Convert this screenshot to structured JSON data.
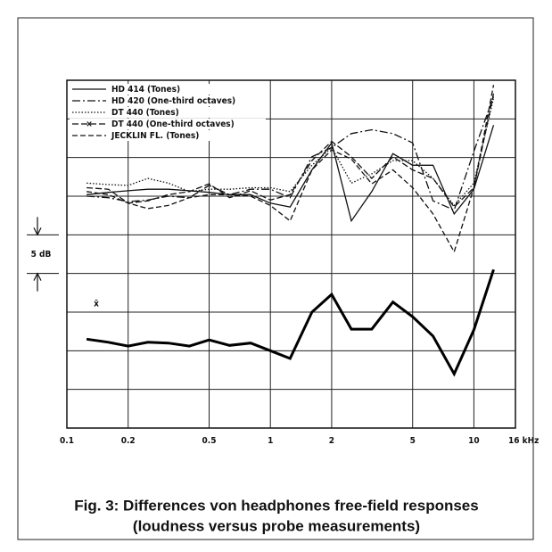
{
  "chart_data": {
    "type": "line",
    "caption": [
      "Fig. 3: Differences von headphones free-field responses",
      "(loudness versus probe measurements)"
    ],
    "annotation": "5 dB",
    "xlog": true,
    "xlim": [
      0.1,
      16
    ],
    "xticks": [
      0.1,
      0.2,
      0.5,
      1,
      2,
      5,
      10,
      {
        "value": 16,
        "label": "16 kHz"
      }
    ],
    "ylim": [
      0,
      45
    ],
    "yticks": [
      0,
      5,
      10,
      15,
      20,
      25,
      30,
      35,
      40,
      45
    ],
    "ytick_labels": false,
    "grid": true,
    "legend": "upper left",
    "x": [
      0.125,
      0.16,
      0.2,
      0.25,
      0.315,
      0.4,
      0.5,
      0.63,
      0.8,
      1,
      1.25,
      1.6,
      2,
      2.5,
      3.15,
      4,
      5,
      6.3,
      8,
      10,
      12.5
    ],
    "series": [
      {
        "name": "HD 414 (Tones)",
        "color": "#111",
        "dash": "solid",
        "values": [
          30.2,
          30.5,
          30.7,
          30.9,
          30.9,
          30.7,
          30.5,
          30.2,
          30.2,
          29.1,
          28.6,
          33.4,
          36.9,
          26.8,
          30.6,
          35.5,
          34.0,
          34.0,
          27.7,
          30.9,
          39.2
        ]
      },
      {
        "name": "HD 420 (One-third octaves)",
        "color": "#111",
        "dash": "dashdot",
        "values": [
          30.0,
          29.8,
          29.3,
          29.5,
          30.0,
          29.8,
          31.4,
          30.2,
          30.9,
          30.9,
          29.8,
          35.1,
          36.3,
          38.1,
          38.6,
          38.1,
          36.9,
          29.4,
          28.2,
          35.8,
          42.9
        ]
      },
      {
        "name": "DT 440 (Tones)",
        "color": "#111",
        "dash": "dotted",
        "values": [
          31.7,
          31.5,
          31.4,
          32.3,
          31.7,
          30.6,
          30.9,
          30.9,
          31.1,
          31.1,
          30.6,
          34.0,
          36.3,
          31.7,
          32.9,
          34.6,
          34.6,
          32.3,
          28.8,
          31.7,
          42.7
        ]
      },
      {
        "name": "DT 440 (One-third octaves)",
        "color": "#111",
        "dash": "dashx",
        "values": [
          31.1,
          30.9,
          29.1,
          29.4,
          30.2,
          30.6,
          31.6,
          29.8,
          30.7,
          29.5,
          30.2,
          34.6,
          37.1,
          35.1,
          32.3,
          35.1,
          33.4,
          32.3,
          28.6,
          31.1,
          43.3
        ]
      },
      {
        "name": "JECKLIN FL. (Tones)",
        "color": "#111",
        "dash": "dashed",
        "values": [
          30.6,
          30.2,
          29.1,
          28.4,
          28.8,
          29.8,
          30.2,
          30.2,
          30.0,
          28.8,
          26.8,
          33.4,
          36.0,
          34.8,
          31.6,
          33.4,
          31.1,
          27.7,
          22.8,
          31.1,
          44.4
        ]
      },
      {
        "name": "x̄",
        "color": "#000",
        "dash": "thick",
        "in_legend": false,
        "values": [
          11.5,
          11.1,
          10.6,
          11.1,
          11.0,
          10.6,
          11.4,
          10.7,
          11.0,
          10.0,
          9.0,
          15.0,
          17.3,
          12.8,
          12.8,
          16.3,
          14.4,
          11.9,
          7.0,
          12.7,
          20.5
        ]
      }
    ]
  }
}
